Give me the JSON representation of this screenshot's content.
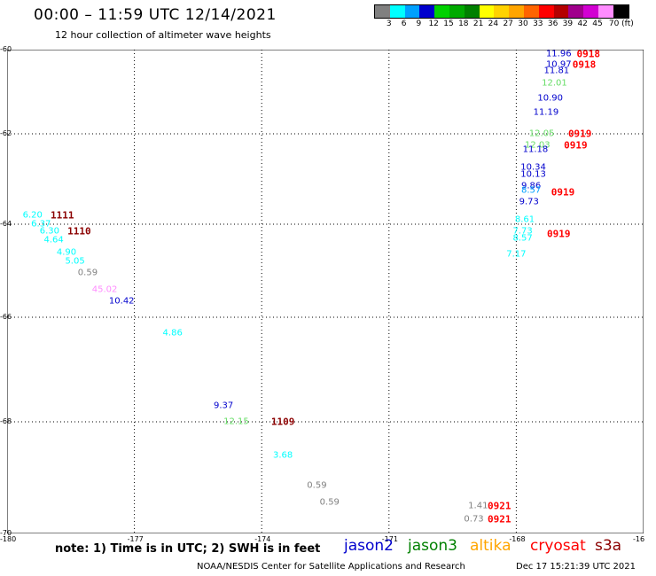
{
  "header": {
    "title": "00:00 – 11:59 UTC 12/14/2021",
    "subtitle": "12 hour collection of altimeter wave heights"
  },
  "colorbar": {
    "colors": [
      "#808080",
      "#00ffff",
      "#00a0ff",
      "#0000cd",
      "#00d200",
      "#00aa00",
      "#008000",
      "#ffff00",
      "#ffd200",
      "#ffa500",
      "#ff6400",
      "#ff0000",
      "#b40000",
      "#a0008c",
      "#d200d2",
      "#ff8cff",
      "#000000"
    ],
    "labels": [
      "3",
      "6",
      "9",
      "12",
      "15",
      "18",
      "21",
      "24",
      "27",
      "30",
      "33",
      "36",
      "39",
      "42",
      "45",
      "70 (ft)"
    ]
  },
  "axes": {
    "xticks": [
      "-180",
      "-177",
      "-174",
      "-171",
      "-168",
      "-16"
    ],
    "yticks": [
      "-60",
      "-62",
      "-64",
      "-66",
      "-68",
      "-70"
    ]
  },
  "map": {
    "lon_range": [
      -180,
      -165
    ],
    "lat_range": [
      -60,
      -70
    ],
    "swh_labels": [
      {
        "text": "11.96",
        "lon": -167.0,
        "lat": -60.1,
        "color": "#0000cd"
      },
      {
        "text": "10.97",
        "lon": -167.0,
        "lat": -60.35,
        "color": "#0000cd"
      },
      {
        "text": "11.81",
        "lon": -167.05,
        "lat": -60.5,
        "color": "#0000cd"
      },
      {
        "text": "12.01",
        "lon": -167.1,
        "lat": -60.8,
        "color": "#66dd66"
      },
      {
        "text": "10.90",
        "lon": -167.2,
        "lat": -61.15,
        "color": "#0000cd"
      },
      {
        "text": "11.19",
        "lon": -167.3,
        "lat": -61.5,
        "color": "#0000cd"
      },
      {
        "text": "12.05",
        "lon": -167.4,
        "lat": -62.0,
        "color": "#66dd66"
      },
      {
        "text": "12.03",
        "lon": -167.5,
        "lat": -62.25,
        "color": "#66dd66"
      },
      {
        "text": "11.18",
        "lon": -167.55,
        "lat": -62.35,
        "color": "#0000cd"
      },
      {
        "text": "10.34",
        "lon": -167.6,
        "lat": -62.75,
        "color": "#0000cd"
      },
      {
        "text": "10.13",
        "lon": -167.6,
        "lat": -62.9,
        "color": "#0000cd"
      },
      {
        "text": "9.86",
        "lon": -167.65,
        "lat": -63.15,
        "color": "#0000cd"
      },
      {
        "text": "8.57",
        "lon": -167.65,
        "lat": -63.25,
        "color": "#00a0ff"
      },
      {
        "text": "9.73",
        "lon": -167.7,
        "lat": -63.5,
        "color": "#0000cd"
      },
      {
        "text": "8.61",
        "lon": -167.8,
        "lat": -63.9,
        "color": "#00ffff"
      },
      {
        "text": "7.73",
        "lon": -167.85,
        "lat": -64.15,
        "color": "#00ffff"
      },
      {
        "text": "8.57",
        "lon": -167.85,
        "lat": -64.3,
        "color": "#00ffff"
      },
      {
        "text": "7.17",
        "lon": -168.0,
        "lat": -64.65,
        "color": "#00ffff"
      },
      {
        "text": "6.20",
        "lon": -179.4,
        "lat": -63.8,
        "color": "#00ffff"
      },
      {
        "text": "6.37",
        "lon": -179.2,
        "lat": -64.0,
        "color": "#00ffff"
      },
      {
        "text": "6.30",
        "lon": -179.0,
        "lat": -64.15,
        "color": "#00ffff"
      },
      {
        "text": "4.64",
        "lon": -178.9,
        "lat": -64.35,
        "color": "#00ffff"
      },
      {
        "text": "4.90",
        "lon": -178.6,
        "lat": -64.6,
        "color": "#00ffff"
      },
      {
        "text": "5.05",
        "lon": -178.4,
        "lat": -64.8,
        "color": "#00ffff"
      },
      {
        "text": "0.59",
        "lon": -178.1,
        "lat": -65.05,
        "color": "#808080"
      },
      {
        "text": "45.02",
        "lon": -177.7,
        "lat": -65.4,
        "color": "#ff8cff"
      },
      {
        "text": "10.42",
        "lon": -177.3,
        "lat": -65.65,
        "color": "#0000cd"
      },
      {
        "text": "4.86",
        "lon": -176.1,
        "lat": -66.3,
        "color": "#00ffff"
      },
      {
        "text": "9.37",
        "lon": -174.9,
        "lat": -67.7,
        "color": "#0000cd"
      },
      {
        "text": "12.15",
        "lon": -174.6,
        "lat": -68.0,
        "color": "#66dd66"
      },
      {
        "text": "3.68",
        "lon": -173.5,
        "lat": -68.6,
        "color": "#00ffff"
      },
      {
        "text": "0.59",
        "lon": -172.7,
        "lat": -69.15,
        "color": "#808080"
      },
      {
        "text": "0.59",
        "lon": -172.4,
        "lat": -69.45,
        "color": "#808080"
      },
      {
        "text": "1.41",
        "lon": -168.9,
        "lat": -69.5,
        "color": "#808080"
      },
      {
        "text": "0.73",
        "lon": -169.0,
        "lat": -69.75,
        "color": "#808080"
      }
    ],
    "pass_labels": [
      {
        "text": "0918",
        "lon": -166.3,
        "lat": -60.1,
        "color": "#ff0000"
      },
      {
        "text": "0918",
        "lon": -166.4,
        "lat": -60.35,
        "color": "#ff0000"
      },
      {
        "text": "0919",
        "lon": -166.5,
        "lat": -62.0,
        "color": "#ff0000"
      },
      {
        "text": "0919",
        "lon": -166.6,
        "lat": -62.25,
        "color": "#ff0000"
      },
      {
        "text": "0919",
        "lon": -166.9,
        "lat": -63.3,
        "color": "#ff0000"
      },
      {
        "text": "0919",
        "lon": -167.0,
        "lat": -64.2,
        "color": "#ff0000"
      },
      {
        "text": "1111",
        "lon": -178.7,
        "lat": -63.8,
        "color": "#8b0000"
      },
      {
        "text": "1110",
        "lon": -178.3,
        "lat": -64.15,
        "color": "#8b0000"
      },
      {
        "text": "1109",
        "lon": -173.5,
        "lat": -68.0,
        "color": "#8b0000"
      },
      {
        "text": "0921",
        "lon": -168.4,
        "lat": -69.5,
        "color": "#ff0000"
      },
      {
        "text": "0921",
        "lon": -168.4,
        "lat": -69.75,
        "color": "#ff0000"
      }
    ]
  },
  "footer": {
    "note": "note: 1) Time is in UTC; 2) SWH is in feet",
    "satellites": [
      {
        "name": "jason2",
        "color": "#0000cd"
      },
      {
        "name": "jason3",
        "color": "#008000"
      },
      {
        "name": "altika",
        "color": "#ffa500"
      },
      {
        "name": "cryosat",
        "color": "#ff0000"
      },
      {
        "name": "s3a",
        "color": "#8b0000"
      }
    ],
    "credit": "NOAA/NESDIS Center for Satellite Applications and Research",
    "timestamp": "Dec 17 15:21:39 UTC 2021"
  }
}
